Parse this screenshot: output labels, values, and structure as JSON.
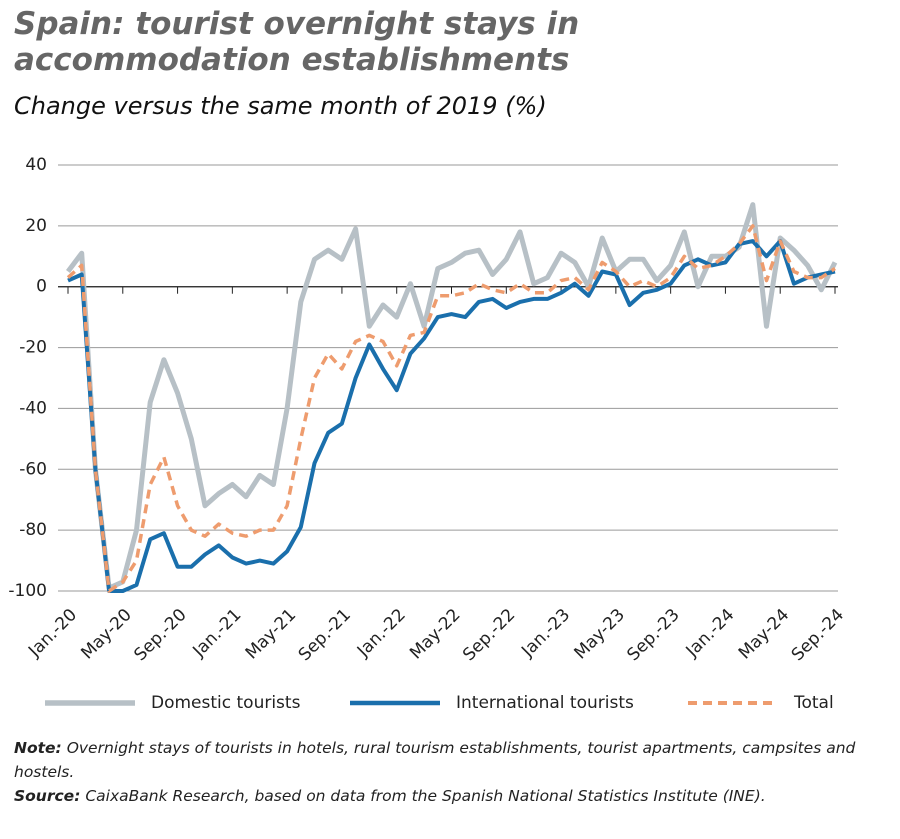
{
  "chart_data": {
    "type": "line",
    "title": "Spain: tourist overnight stays in accommodation establishments",
    "subtitle": "Change versus the same month of 2019 (%)",
    "categories": [
      "Jan.-20",
      null,
      null,
      null,
      "May-20",
      null,
      null,
      null,
      "Sep.-20",
      null,
      null,
      null,
      "Jan.-21",
      null,
      null,
      null,
      "May-21",
      null,
      null,
      null,
      "Sep.-21",
      null,
      null,
      null,
      "Jan.-22",
      null,
      null,
      null,
      "May-22",
      null,
      null,
      null,
      "Sep.-22",
      null,
      null,
      null,
      "Jan.-23",
      null,
      null,
      null,
      "May-23",
      null,
      null,
      null,
      "Sep.-23",
      null,
      null,
      null,
      "Jan.-24",
      null,
      null,
      null,
      "May-24",
      null,
      null,
      null,
      "Sep.-24"
    ],
    "series": [
      {
        "name": "Domestic tourists",
        "color": "#b7c0c6",
        "values": [
          5,
          11,
          -60,
          -99,
          -97,
          -80,
          -38,
          -24,
          -35,
          -50,
          -72,
          -68,
          -65,
          -69,
          -62,
          -65,
          -40,
          -5,
          9,
          12,
          9,
          19,
          -13,
          -6,
          -10,
          1,
          -13,
          6,
          8,
          11,
          12,
          4,
          9,
          18,
          1,
          3,
          11,
          8,
          0,
          16,
          5,
          9,
          9,
          2,
          7,
          18,
          0,
          10,
          10,
          13,
          27,
          -13,
          16,
          12,
          7,
          -1,
          8
        ]
      },
      {
        "name": "International tourists",
        "color": "#1a6fac",
        "values": [
          2,
          4,
          -60,
          -100,
          -100,
          -98,
          -83,
          -81,
          -92,
          -92,
          -88,
          -85,
          -89,
          -91,
          -90,
          -91,
          -87,
          -79,
          -58,
          -48,
          -45,
          -30,
          -19,
          -27,
          -34,
          -22,
          -17,
          -10,
          -9,
          -10,
          -5,
          -4,
          -7,
          -5,
          -4,
          -4,
          -2,
          1,
          -3,
          5,
          4,
          -6,
          -2,
          -1,
          1,
          7,
          9,
          7,
          8,
          14,
          15,
          10,
          15,
          1,
          3,
          4,
          5
        ]
      },
      {
        "name": "Total",
        "color": "#ee9c6e",
        "dashed": true,
        "values": [
          3,
          7,
          -60,
          -100,
          -97,
          -90,
          -65,
          -56,
          -72,
          -80,
          -82,
          -78,
          -81,
          -82,
          -80,
          -80,
          -72,
          -50,
          -30,
          -22,
          -27,
          -18,
          -16,
          -18,
          -26,
          -16,
          -15,
          -3,
          -3,
          -2,
          1,
          -1,
          -2,
          1,
          -2,
          -2,
          2,
          3,
          -1,
          8,
          5,
          0,
          2,
          0,
          3,
          10,
          6,
          7,
          10,
          14,
          20,
          2,
          15,
          5,
          3,
          3,
          6
        ]
      }
    ],
    "ylim": [
      -100,
      40
    ],
    "yticks": [
      -100,
      -80,
      -60,
      -40,
      -20,
      0,
      20,
      40
    ],
    "grid": true,
    "legend": "bottom",
    "note": {
      "label": "Note:",
      "text": "Overnight stays of tourists in hotels, rural tourism establishments, tourist apartments, campsites and hostels."
    },
    "source": {
      "label": "Source:",
      "text": "CaixaBank Research, based on data from the Spanish National Statistics Institute (INE)."
    }
  }
}
